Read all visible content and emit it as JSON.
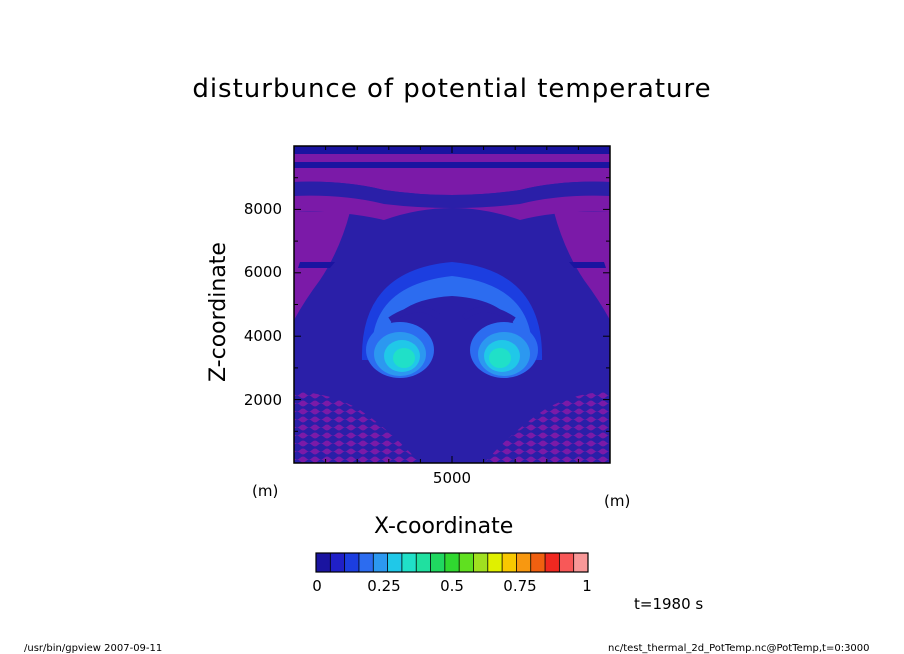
{
  "title": "disturbunce of potential temperature",
  "time_label": "t=1980 s",
  "footer": {
    "left": "/usr/bin/gpview   2007-09-11",
    "right": "nc/test_thermal_2d_PotTemp.nc@PotTemp,t=0:3000"
  },
  "colors": {
    "background_level": "#2a1fa8",
    "purple_band": "#7b1aa8",
    "dark_band": "#1a14a0"
  },
  "chart_data": {
    "type": "heatmap",
    "title": "disturbunce of potential temperature",
    "xlabel": "X-coordinate",
    "ylabel": "Z-coordinate",
    "x_unit": "(m)",
    "y_unit": "(m)",
    "xlim": [
      0,
      10000
    ],
    "ylim": [
      0,
      10000
    ],
    "x_ticks": [
      "5000"
    ],
    "y_ticks": [
      "2000",
      "4000",
      "6000",
      "8000"
    ],
    "colorbar": {
      "min": 0,
      "max": 1,
      "ticks": [
        "0",
        "0.25",
        "0.5",
        "0.75",
        "1"
      ],
      "colors": [
        "#1a14a0",
        "#2020c8",
        "#1c3ee0",
        "#2c6cf0",
        "#2c98f0",
        "#20c8e8",
        "#20e0c8",
        "#20e0a0",
        "#20d860",
        "#30d830",
        "#60e020",
        "#a0e020",
        "#e0f000",
        "#f8c800",
        "#f89810",
        "#f06010",
        "#f02820",
        "#f85858",
        "#f89898"
      ]
    },
    "features": [
      {
        "name": "warm-lobe-left",
        "x": 3200,
        "z": 3300,
        "value": 0.3
      },
      {
        "name": "warm-lobe-right",
        "x": 6800,
        "z": 3300,
        "value": 0.3
      },
      {
        "name": "cap-arc",
        "x": 5000,
        "z": 5400,
        "value": 0.12
      }
    ]
  }
}
